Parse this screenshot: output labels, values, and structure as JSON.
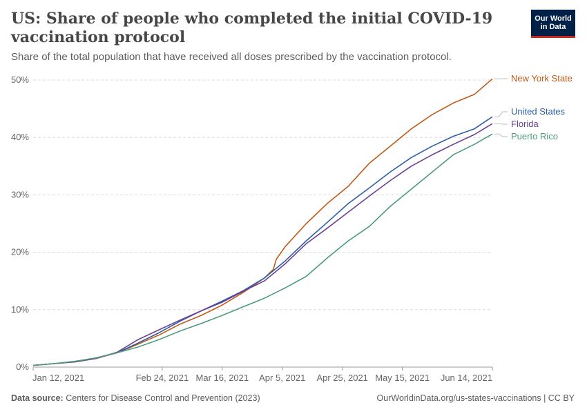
{
  "header": {
    "title": "US: Share of people who completed the initial COVID-19 vaccination protocol",
    "subtitle": "Share of the total population that have received all doses prescribed by the vaccination protocol."
  },
  "logo": {
    "line1": "Our World",
    "line2": "in Data",
    "bg_color": "#002147",
    "accent_color": "#ce261e"
  },
  "footer": {
    "source_label": "Data source:",
    "source_text": "Centers for Disease Control and Prevention (2023)",
    "url_license": "OurWorldinData.org/us-states-vaccinations | CC BY"
  },
  "chart_data": {
    "type": "line",
    "x_axis": {
      "start_date": "2021-01-12",
      "end_date": "2021-06-20",
      "tick_labels": [
        {
          "label": "Jan 12, 2021",
          "day": 0
        },
        {
          "label": "Feb 24, 2021",
          "day": 43
        },
        {
          "label": "Mar 16, 2021",
          "day": 63
        },
        {
          "label": "Apr 5, 2021",
          "day": 83
        },
        {
          "label": "Apr 25, 2021",
          "day": 103
        },
        {
          "label": "May 15, 2021",
          "day": 123
        },
        {
          "label": "Jun 14, 2021",
          "day": 153
        }
      ]
    },
    "y_axis": {
      "ylim": [
        0,
        50
      ],
      "ticks": [
        0,
        10,
        20,
        30,
        40,
        50
      ],
      "tick_labels": [
        "0%",
        "10%",
        "20%",
        "30%",
        "40%",
        "50%"
      ],
      "grid": true
    },
    "series": [
      {
        "name": "New York State",
        "color": "#c05917",
        "points": [
          [
            0,
            0.3
          ],
          [
            7,
            0.6
          ],
          [
            14,
            0.9
          ],
          [
            21,
            1.5
          ],
          [
            28,
            2.5
          ],
          [
            35,
            4.0
          ],
          [
            42,
            5.6
          ],
          [
            49,
            7.5
          ],
          [
            56,
            9.0
          ],
          [
            63,
            10.8
          ],
          [
            70,
            13.0
          ],
          [
            77,
            15.5
          ],
          [
            80,
            17.0
          ],
          [
            81,
            18.8
          ],
          [
            84,
            21.0
          ],
          [
            91,
            25.0
          ],
          [
            98,
            28.5
          ],
          [
            105,
            31.5
          ],
          [
            112,
            35.5
          ],
          [
            119,
            38.5
          ],
          [
            126,
            41.5
          ],
          [
            133,
            44.0
          ],
          [
            140,
            46.0
          ],
          [
            147,
            47.5
          ],
          [
            153,
            50.2
          ]
        ]
      },
      {
        "name": "United States",
        "color": "#2c5fa8",
        "points": [
          [
            0,
            0.3
          ],
          [
            7,
            0.6
          ],
          [
            14,
            1.0
          ],
          [
            21,
            1.6
          ],
          [
            28,
            2.5
          ],
          [
            35,
            4.2
          ],
          [
            42,
            6.0
          ],
          [
            49,
            8.0
          ],
          [
            56,
            9.8
          ],
          [
            63,
            11.5
          ],
          [
            70,
            13.3
          ],
          [
            77,
            15.5
          ],
          [
            84,
            18.5
          ],
          [
            91,
            22.0
          ],
          [
            98,
            25.2
          ],
          [
            105,
            28.5
          ],
          [
            112,
            31.2
          ],
          [
            119,
            34.0
          ],
          [
            126,
            36.5
          ],
          [
            133,
            38.5
          ],
          [
            140,
            40.2
          ],
          [
            147,
            41.5
          ],
          [
            153,
            43.6
          ]
        ]
      },
      {
        "name": "Florida",
        "color": "#6d3e91",
        "points": [
          [
            0,
            0.3
          ],
          [
            7,
            0.6
          ],
          [
            14,
            0.9
          ],
          [
            21,
            1.5
          ],
          [
            28,
            2.6
          ],
          [
            35,
            4.8
          ],
          [
            42,
            6.5
          ],
          [
            49,
            8.2
          ],
          [
            56,
            9.8
          ],
          [
            63,
            11.3
          ],
          [
            70,
            13.2
          ],
          [
            77,
            15.0
          ],
          [
            84,
            18.0
          ],
          [
            91,
            21.5
          ],
          [
            98,
            24.2
          ],
          [
            105,
            27.0
          ],
          [
            112,
            29.8
          ],
          [
            119,
            32.5
          ],
          [
            126,
            35.0
          ],
          [
            133,
            37.0
          ],
          [
            140,
            38.8
          ],
          [
            147,
            40.5
          ],
          [
            153,
            42.4
          ]
        ]
      },
      {
        "name": "Puerto Rico",
        "color": "#4c9b7a",
        "points": [
          [
            0,
            0.3
          ],
          [
            7,
            0.6
          ],
          [
            14,
            1.0
          ],
          [
            21,
            1.6
          ],
          [
            28,
            2.5
          ],
          [
            35,
            3.5
          ],
          [
            42,
            4.8
          ],
          [
            49,
            6.3
          ],
          [
            56,
            7.6
          ],
          [
            63,
            9.0
          ],
          [
            70,
            10.5
          ],
          [
            77,
            12.0
          ],
          [
            84,
            13.8
          ],
          [
            91,
            15.8
          ],
          [
            98,
            19.0
          ],
          [
            105,
            22.0
          ],
          [
            112,
            24.5
          ],
          [
            119,
            28.0
          ],
          [
            126,
            31.0
          ],
          [
            133,
            34.0
          ],
          [
            140,
            37.0
          ],
          [
            147,
            38.8
          ],
          [
            153,
            40.6
          ]
        ]
      }
    ],
    "legend": [
      {
        "name": "New York State",
        "value_at_end": 50.2
      },
      {
        "name": "United States",
        "value_at_end": 43.6
      },
      {
        "name": "Florida",
        "value_at_end": 42.4
      },
      {
        "name": "Puerto Rico",
        "value_at_end": 40.6
      }
    ],
    "legend_placement": "right (line-end labels)"
  }
}
